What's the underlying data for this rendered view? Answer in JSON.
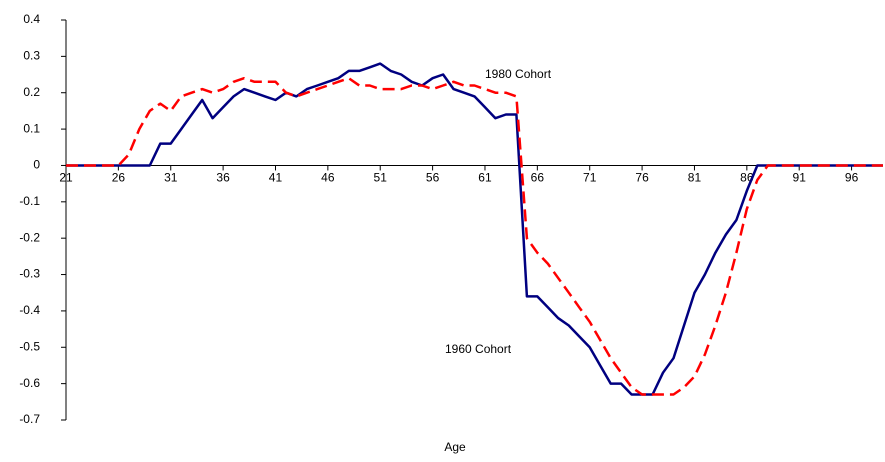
{
  "chart_data": {
    "type": "line",
    "x_label": "Age",
    "x": [
      21,
      22,
      23,
      24,
      25,
      26,
      27,
      28,
      29,
      30,
      31,
      32,
      33,
      34,
      35,
      36,
      37,
      38,
      39,
      40,
      41,
      42,
      43,
      44,
      45,
      46,
      47,
      48,
      49,
      50,
      51,
      52,
      53,
      54,
      55,
      56,
      57,
      58,
      59,
      60,
      61,
      62,
      63,
      64,
      65,
      66,
      67,
      68,
      69,
      70,
      71,
      72,
      73,
      74,
      75,
      76,
      77,
      78,
      79,
      80,
      81,
      82,
      83,
      84,
      85,
      86,
      87,
      88,
      89,
      90,
      91,
      92,
      93,
      94,
      95,
      96,
      97,
      98,
      99
    ],
    "series": [
      {
        "name": "1960 Cohort",
        "color": "#000080",
        "dashed": false,
        "values": [
          0,
          0,
          0,
          0,
          0,
          0,
          0,
          0,
          0,
          0.06,
          0.06,
          0.1,
          0.14,
          0.18,
          0.13,
          0.16,
          0.19,
          0.21,
          0.2,
          0.19,
          0.18,
          0.2,
          0.19,
          0.21,
          0.22,
          0.23,
          0.24,
          0.26,
          0.26,
          0.27,
          0.28,
          0.26,
          0.25,
          0.23,
          0.22,
          0.24,
          0.25,
          0.21,
          0.2,
          0.19,
          0.16,
          0.13,
          0.14,
          0.14,
          -0.36,
          -0.36,
          -0.39,
          -0.42,
          -0.44,
          -0.47,
          -0.5,
          -0.55,
          -0.6,
          -0.6,
          -0.63,
          -0.63,
          -0.63,
          -0.57,
          -0.53,
          -0.44,
          -0.35,
          -0.3,
          -0.24,
          -0.19,
          -0.15,
          -0.07,
          0,
          0,
          0,
          0,
          0,
          0,
          0,
          0,
          0,
          0,
          0,
          0,
          0
        ]
      },
      {
        "name": "1980 Cohort",
        "color": "#ff0000",
        "dashed": true,
        "values": [
          0,
          0,
          0,
          0,
          0,
          0,
          0.03,
          0.1,
          0.15,
          0.17,
          0.15,
          0.19,
          0.2,
          0.21,
          0.2,
          0.21,
          0.23,
          0.24,
          0.23,
          0.23,
          0.23,
          0.2,
          0.19,
          0.2,
          0.21,
          0.22,
          0.23,
          0.24,
          0.22,
          0.22,
          0.21,
          0.21,
          0.21,
          0.22,
          0.22,
          0.21,
          0.22,
          0.23,
          0.22,
          0.22,
          0.21,
          0.2,
          0.2,
          0.19,
          -0.2,
          -0.24,
          -0.27,
          -0.31,
          -0.35,
          -0.39,
          -0.43,
          -0.48,
          -0.53,
          -0.57,
          -0.61,
          -0.63,
          -0.63,
          -0.63,
          -0.63,
          -0.61,
          -0.58,
          -0.52,
          -0.44,
          -0.35,
          -0.24,
          -0.12,
          -0.04,
          0,
          0,
          0,
          0,
          0,
          0,
          0,
          0,
          0,
          0,
          0,
          0
        ]
      }
    ],
    "xlim": [
      21,
      99
    ],
    "xticks": [
      21,
      26,
      31,
      36,
      41,
      46,
      51,
      56,
      61,
      66,
      71,
      76,
      81,
      86,
      91,
      96
    ],
    "ylim": [
      -0.7,
      0.4
    ],
    "yticks": [
      0.4,
      0.3,
      0.2,
      0.1,
      0,
      -0.1,
      -0.2,
      -0.3,
      -0.4,
      -0.5,
      -0.6,
      -0.7
    ],
    "grid": false
  }
}
